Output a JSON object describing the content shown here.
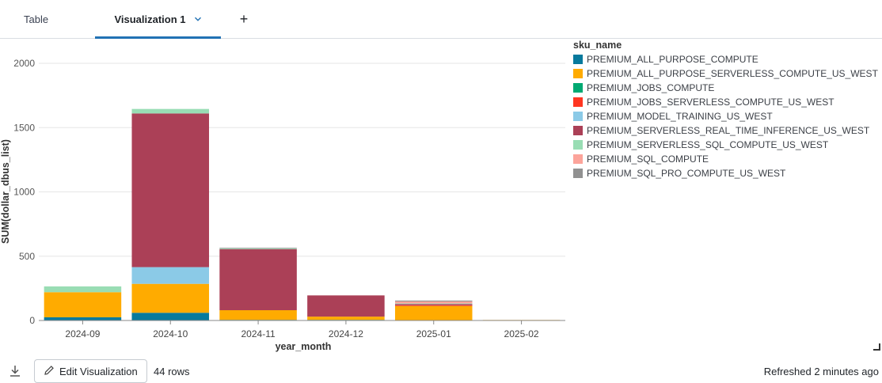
{
  "tabs": [
    {
      "label": "Table"
    },
    {
      "label": "Visualization 1"
    }
  ],
  "add_tab_symbol": "+",
  "icons": {
    "tab_dropdown": "chevron-down-icon",
    "add_tab": "plus-icon",
    "download": "download-icon",
    "edit": "pencil-icon",
    "resize": "resize-handle-icon"
  },
  "chart_data": {
    "type": "bar",
    "stacked": true,
    "categories": [
      "2024-09",
      "2024-10",
      "2024-11",
      "2024-12",
      "2025-01",
      "2025-02"
    ],
    "xlabel": "year_month",
    "ylabel": "SUM(dollar_dbus_list)",
    "ylim": [
      0,
      2000
    ],
    "yticks": [
      0,
      500,
      1000,
      1500,
      2000
    ],
    "grid": true,
    "legend_title": "sku_name",
    "legend_position": "right",
    "series": [
      {
        "name": "PREMIUM_ALL_PURPOSE_COMPUTE",
        "color": "#077a9d",
        "values": [
          25,
          60,
          5,
          5,
          3,
          0
        ]
      },
      {
        "name": "PREMIUM_ALL_PURPOSE_SERVERLESS_COMPUTE_US_WEST",
        "color": "#ffab00",
        "values": [
          195,
          225,
          75,
          25,
          110,
          4
        ]
      },
      {
        "name": "PREMIUM_JOBS_COMPUTE",
        "color": "#00a972",
        "values": [
          0,
          0,
          0,
          0,
          0,
          0
        ]
      },
      {
        "name": "PREMIUM_JOBS_SERVERLESS_COMPUTE_US_WEST",
        "color": "#ff3621",
        "values": [
          0,
          0,
          0,
          0,
          5,
          0
        ]
      },
      {
        "name": "PREMIUM_MODEL_TRAINING_US_WEST",
        "color": "#8bcae7",
        "values": [
          0,
          130,
          0,
          0,
          0,
          0
        ]
      },
      {
        "name": "PREMIUM_SERVERLESS_REAL_TIME_INFERENCE_US_WEST",
        "color": "#ab4057",
        "values": [
          0,
          1195,
          475,
          165,
          10,
          0
        ]
      },
      {
        "name": "PREMIUM_SERVERLESS_SQL_COMPUTE_US_WEST",
        "color": "#99ddb4",
        "values": [
          45,
          35,
          5,
          0,
          5,
          0
        ]
      },
      {
        "name": "PREMIUM_SQL_COMPUTE",
        "color": "#fcа49b",
        "values": [
          0,
          0,
          0,
          0,
          15,
          0
        ]
      },
      {
        "name": "PREMIUM_SQL_PRO_COMPUTE_US_WEST",
        "color": "#919191",
        "values": [
          0,
          0,
          5,
          0,
          7,
          0
        ]
      }
    ]
  },
  "footer": {
    "edit_label": "Edit Visualization",
    "rows": "44 rows",
    "refreshed": "Refreshed 2 minutes ago"
  }
}
